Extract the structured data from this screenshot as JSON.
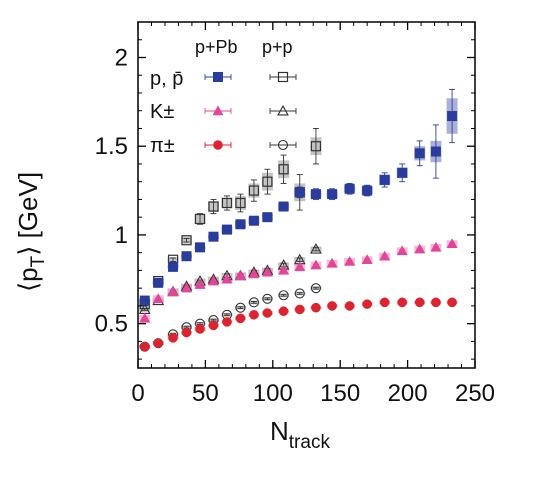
{
  "chart_data": {
    "type": "scatter",
    "xlabel": "N",
    "xlabel_sub": "track",
    "ylabel_left": "⟨p",
    "ylabel_sub": "T",
    "ylabel_right": "⟩ [GeV]",
    "xlim": [
      0,
      250
    ],
    "ylim": [
      0.25,
      2.2
    ],
    "xticks": [
      "0",
      "50",
      "100",
      "150",
      "200",
      "250"
    ],
    "xtick_values": [
      0,
      50,
      100,
      150,
      200,
      250
    ],
    "yticks": [
      "0.5",
      "1",
      "1.5",
      "2"
    ],
    "ytick_values": [
      0.5,
      1,
      1.5,
      2
    ],
    "grid": false,
    "legend": {
      "position": "top-left",
      "col_headers": [
        "p+Pb",
        "p+p"
      ],
      "rows": [
        {
          "label": "p, p̄",
          "pPb_series": "p+Pb p",
          "pp_series": "p+p p"
        },
        {
          "label": "K±",
          "pPb_series": "p+Pb K",
          "pp_series": "p+p K"
        },
        {
          "label": "π±",
          "pPb_series": "p+Pb pi",
          "pp_series": "p+p pi"
        }
      ]
    },
    "series": [
      {
        "name": "p+Pb p",
        "marker": "square-filled",
        "color": "#2b3d9a",
        "x": [
          5,
          15,
          26,
          36,
          46,
          56,
          66,
          76,
          86,
          96,
          108,
          120,
          132,
          144,
          157,
          170,
          183,
          196,
          209,
          221,
          233
        ],
        "y": [
          0.63,
          0.73,
          0.82,
          0.88,
          0.93,
          0.99,
          1.03,
          1.06,
          1.08,
          1.1,
          1.16,
          1.24,
          1.23,
          1.23,
          1.26,
          1.25,
          1.31,
          1.35,
          1.46,
          1.47,
          1.67
        ],
        "err": [
          0.01,
          0.01,
          0.01,
          0.01,
          0.01,
          0.01,
          0.01,
          0.01,
          0.01,
          0.01,
          0.02,
          0.03,
          0.03,
          0.03,
          0.03,
          0.03,
          0.04,
          0.05,
          0.07,
          0.15,
          0.15
        ],
        "syst": [
          0.01,
          0.01,
          0.01,
          0.01,
          0.01,
          0.01,
          0.02,
          0.02,
          0.02,
          0.02,
          0.02,
          0.02,
          0.02,
          0.02,
          0.02,
          0.02,
          0.03,
          0.03,
          0.04,
          0.06,
          0.1
        ]
      },
      {
        "name": "p+Pb K",
        "marker": "triangle-filled",
        "color": "#e0479a",
        "x": [
          5,
          15,
          26,
          36,
          46,
          56,
          66,
          76,
          86,
          96,
          108,
          120,
          132,
          144,
          157,
          170,
          183,
          196,
          209,
          221,
          233
        ],
        "y": [
          0.53,
          0.64,
          0.68,
          0.7,
          0.72,
          0.74,
          0.75,
          0.77,
          0.78,
          0.79,
          0.8,
          0.82,
          0.83,
          0.84,
          0.85,
          0.86,
          0.88,
          0.91,
          0.92,
          0.93,
          0.95
        ],
        "err": [
          0.005,
          0.005,
          0.005,
          0.005,
          0.005,
          0.005,
          0.005,
          0.005,
          0.005,
          0.005,
          0.005,
          0.005,
          0.005,
          0.005,
          0.005,
          0.005,
          0.005,
          0.005,
          0.005,
          0.005,
          0.005
        ],
        "syst": [
          0.02,
          0.02,
          0.02,
          0.02,
          0.02,
          0.02,
          0.02,
          0.02,
          0.02,
          0.02,
          0.02,
          0.02,
          0.02,
          0.02,
          0.02,
          0.02,
          0.02,
          0.02,
          0.02,
          0.02,
          0.02
        ]
      },
      {
        "name": "p+Pb pi",
        "marker": "circle-filled",
        "color": "#dc2430",
        "x": [
          5,
          15,
          26,
          36,
          46,
          56,
          66,
          76,
          86,
          96,
          108,
          120,
          132,
          144,
          157,
          170,
          183,
          196,
          209,
          221,
          233
        ],
        "y": [
          0.37,
          0.39,
          0.42,
          0.45,
          0.47,
          0.49,
          0.51,
          0.53,
          0.55,
          0.56,
          0.57,
          0.58,
          0.59,
          0.6,
          0.6,
          0.61,
          0.62,
          0.62,
          0.62,
          0.62,
          0.62
        ],
        "err": [
          0.005,
          0.005,
          0.005,
          0.005,
          0.005,
          0.005,
          0.005,
          0.005,
          0.005,
          0.005,
          0.005,
          0.005,
          0.005,
          0.005,
          0.005,
          0.005,
          0.005,
          0.005,
          0.005,
          0.005,
          0.005
        ],
        "syst": [
          0.01,
          0.01,
          0.01,
          0.01,
          0.01,
          0.01,
          0.01,
          0.01,
          0.01,
          0.01,
          0.01,
          0.01,
          0.01,
          0.01,
          0.01,
          0.01,
          0.01,
          0.01,
          0.01,
          0.01,
          0.01
        ]
      },
      {
        "name": "p+p p",
        "marker": "square-open",
        "color": "#333333",
        "x": [
          5,
          15,
          26,
          36,
          46,
          56,
          66,
          76,
          86,
          96,
          108,
          120,
          132
        ],
        "y": [
          0.61,
          0.74,
          0.86,
          0.97,
          1.09,
          1.16,
          1.18,
          1.18,
          1.25,
          1.3,
          1.37,
          1.24,
          1.5
        ],
        "err": [
          0.01,
          0.01,
          0.01,
          0.01,
          0.03,
          0.04,
          0.04,
          0.05,
          0.06,
          0.07,
          0.08,
          0.1,
          0.1
        ],
        "syst": [
          0.015,
          0.015,
          0.015,
          0.02,
          0.03,
          0.03,
          0.03,
          0.04,
          0.04,
          0.05,
          0.05,
          0.05,
          0.05
        ]
      },
      {
        "name": "p+p K",
        "marker": "triangle-open",
        "color": "#333333",
        "x": [
          5,
          15,
          26,
          36,
          46,
          56,
          66,
          76,
          86,
          96,
          108,
          120,
          132
        ],
        "y": [
          0.58,
          0.63,
          0.68,
          0.71,
          0.74,
          0.75,
          0.77,
          0.77,
          0.79,
          0.8,
          0.83,
          0.86,
          0.92
        ],
        "err": [
          0.005,
          0.005,
          0.005,
          0.005,
          0.005,
          0.005,
          0.01,
          0.01,
          0.01,
          0.01,
          0.01,
          0.01,
          0.01
        ],
        "syst": [
          0.015,
          0.015,
          0.015,
          0.015,
          0.015,
          0.015,
          0.015,
          0.015,
          0.015,
          0.015,
          0.015,
          0.015,
          0.015
        ]
      },
      {
        "name": "p+p pi",
        "marker": "circle-open",
        "color": "#333333",
        "x": [
          5,
          15,
          26,
          36,
          46,
          56,
          66,
          76,
          86,
          96,
          108,
          120,
          132
        ],
        "y": [
          0.37,
          0.39,
          0.44,
          0.48,
          0.5,
          0.52,
          0.55,
          0.59,
          0.62,
          0.64,
          0.66,
          0.67,
          0.7
        ],
        "err": [
          0.005,
          0.005,
          0.005,
          0.005,
          0.005,
          0.005,
          0.005,
          0.005,
          0.005,
          0.005,
          0.005,
          0.005,
          0.005
        ],
        "syst": [
          0.01,
          0.01,
          0.01,
          0.01,
          0.01,
          0.01,
          0.01,
          0.01,
          0.01,
          0.01,
          0.01,
          0.01,
          0.01
        ]
      }
    ],
    "colors": {
      "proton": "#2b3d9a",
      "kaon": "#e0479a",
      "pion": "#dc2430",
      "pp": "#333333",
      "pp_syst": "#b0b0b0",
      "proton_syst": "#8f96cc",
      "kaon_syst": "#eea7cc",
      "pion_syst": "#ee9a9f"
    }
  }
}
